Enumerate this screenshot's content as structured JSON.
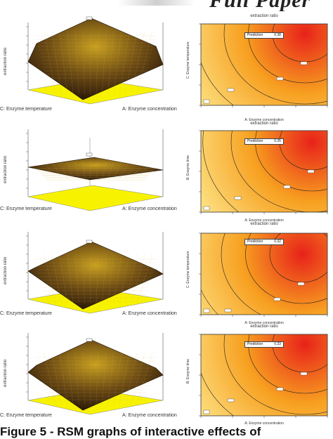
{
  "header": {
    "text": "Full Paper"
  },
  "caption": {
    "text": "Figure 5 - RSM graphs of interactive effects of"
  },
  "panels": [
    {
      "surface": {
        "ylabel": "extraction ratio",
        "xlabel_left": "C: Enzyme temperature",
        "xlabel_right": "A: Enzyme concentration"
      },
      "contour": {
        "title": "extraction ratio",
        "ylabel": "C: Enzyme temperature",
        "prediction_label": "Prediction",
        "prediction_value": "0.38",
        "xlabel": "A: Enzyme concentration"
      }
    },
    {
      "surface": {
        "ylabel": "extraction ratio",
        "xlabel_left": "C: Enzyme temperature",
        "xlabel_right": "A: Enzyme concentration"
      },
      "contour": {
        "title": "extraction ratio",
        "ylabel": "B: Enzyme time",
        "prediction_label": "Prediction",
        "prediction_value": "0.35",
        "xlabel": "A: Enzyme concentration"
      }
    },
    {
      "surface": {
        "ylabel": "extraction ratio",
        "xlabel_left": "C: Enzyme temperature",
        "xlabel_right": "A: Enzyme concentration"
      },
      "contour": {
        "title": "extraction ratio",
        "ylabel": "C: Enzyme temperature",
        "prediction_label": "Prediction",
        "prediction_value": "0.32",
        "xlabel": "A: Enzyme concentration"
      }
    },
    {
      "surface": {
        "ylabel": "extraction ratio",
        "xlabel_left": "C: Enzyme temperature",
        "xlabel_right": "A: Enzyme concentration"
      },
      "contour": {
        "title": "extraction ratio",
        "ylabel": "B: Enzyme time",
        "prediction_label": "Prediction",
        "prediction_value": "0.33",
        "xlabel": "A: Enzyme concentration"
      }
    }
  ],
  "colors": {
    "hot": "#e8221a",
    "warm": "#f7a020",
    "cool": "#fde68a",
    "floor": "#f7f200",
    "surface_dark": "#2b1a0a",
    "surface_light": "#c8a020"
  }
}
